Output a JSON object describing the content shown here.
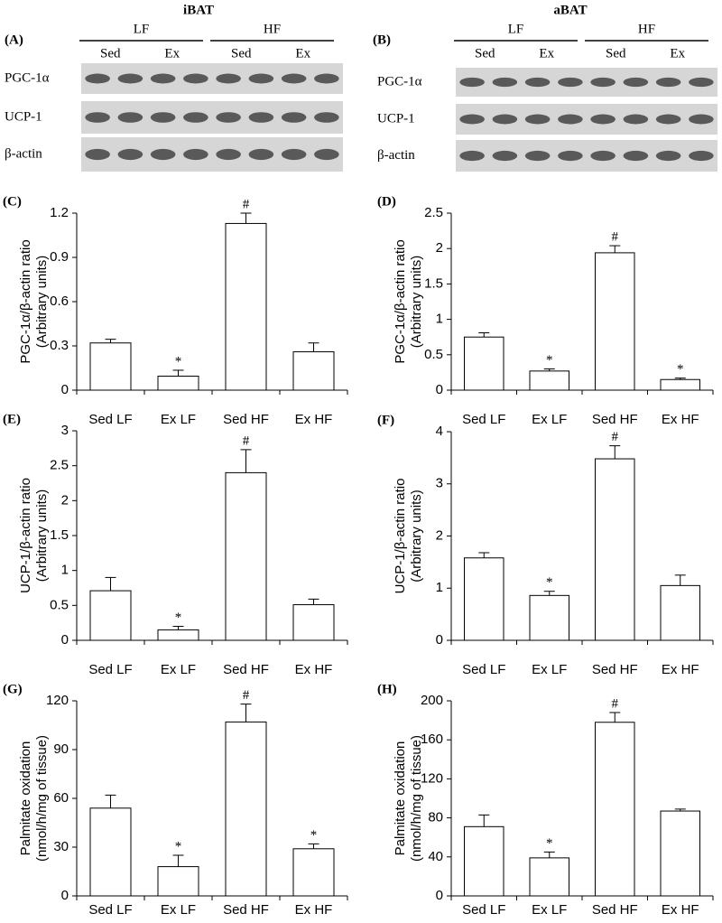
{
  "blots": [
    {
      "panel": "(A)",
      "title": "iBAT",
      "groups": [
        {
          "name": "LF",
          "subgroups": [
            "Sed",
            "Ex"
          ]
        },
        {
          "name": "HF",
          "subgroups": [
            "Sed",
            "Ex"
          ]
        }
      ],
      "rows": [
        "PGC-1α",
        "UCP-1",
        "β-actin"
      ]
    },
    {
      "panel": "(B)",
      "title": "aBAT",
      "groups": [
        {
          "name": "LF",
          "subgroups": [
            "Sed",
            "Ex"
          ]
        },
        {
          "name": "HF",
          "subgroups": [
            "Sed",
            "Ex"
          ]
        }
      ],
      "rows": [
        "PGC-1α",
        "UCP-1",
        "β-actin"
      ]
    }
  ],
  "chart_data": [
    {
      "type": "bar",
      "panel": "(C)",
      "ylabel": [
        "PGC-1α/β-actin ratio",
        "(Arbitrary units)"
      ],
      "categories": [
        "Sed LF",
        "Ex LF",
        "Sed HF",
        "Ex HF"
      ],
      "values": [
        0.32,
        0.095,
        1.13,
        0.26
      ],
      "errors": [
        0.025,
        0.04,
        0.07,
        0.06
      ],
      "markers": [
        null,
        "*",
        "#",
        null
      ],
      "ylim": [
        0,
        1.2
      ],
      "yticks": [
        0,
        0.3,
        0.6,
        0.9,
        1.2
      ]
    },
    {
      "type": "bar",
      "panel": "(D)",
      "ylabel": [
        "PGC-1α/β-actin ratio",
        "(Arbitrary units)"
      ],
      "categories": [
        "Sed LF",
        "Ex LF",
        "Sed HF",
        "Ex HF"
      ],
      "values": [
        0.75,
        0.27,
        1.94,
        0.15
      ],
      "errors": [
        0.06,
        0.03,
        0.1,
        0.02
      ],
      "markers": [
        null,
        "*",
        "#",
        "*"
      ],
      "ylim": [
        0,
        2.5
      ],
      "yticks": [
        0,
        0.5,
        1,
        1.5,
        2,
        2.5
      ]
    },
    {
      "type": "bar",
      "panel": "(E)",
      "ylabel": [
        "UCP-1/β-actin ratio",
        "(Arbitrary units)"
      ],
      "categories": [
        "Sed LF",
        "Ex LF",
        "Sed HF",
        "Ex HF"
      ],
      "values": [
        0.71,
        0.15,
        2.4,
        0.51
      ],
      "errors": [
        0.19,
        0.05,
        0.33,
        0.08
      ],
      "markers": [
        null,
        "*",
        "#",
        null
      ],
      "ylim": [
        0,
        3
      ],
      "yticks": [
        0,
        0.5,
        1,
        1.5,
        2,
        2.5,
        3
      ]
    },
    {
      "type": "bar",
      "panel": "(F)",
      "ylabel": [
        "UCP-1/β-actin ratio",
        "(Arbitrary units)"
      ],
      "categories": [
        "Sed LF",
        "Ex LF",
        "Sed HF",
        "Ex HF"
      ],
      "values": [
        1.58,
        0.86,
        3.48,
        1.05
      ],
      "errors": [
        0.1,
        0.08,
        0.25,
        0.2
      ],
      "markers": [
        null,
        "*",
        "#",
        null
      ],
      "ylim": [
        0,
        4
      ],
      "yticks": [
        0,
        1,
        2,
        3,
        4
      ]
    },
    {
      "type": "bar",
      "panel": "(G)",
      "ylabel": [
        "Palmitate oxidation",
        "(nmol/h/mg of tissue)"
      ],
      "categories": [
        "Sed LF",
        "Ex LF",
        "Sed HF",
        "Ex HF"
      ],
      "values": [
        54,
        18,
        107,
        29
      ],
      "errors": [
        8,
        7,
        11,
        3
      ],
      "markers": [
        null,
        "*",
        "#",
        "*"
      ],
      "ylim": [
        0,
        120
      ],
      "yticks": [
        0,
        30,
        60,
        90,
        120
      ]
    },
    {
      "type": "bar",
      "panel": "(H)",
      "ylabel": [
        "Palmitate oxidation",
        "(nmol/h/mg of tissue)"
      ],
      "categories": [
        "Sed LF",
        "Ex LF",
        "Sed HF",
        "Ex HF"
      ],
      "values": [
        71,
        39,
        178,
        87
      ],
      "errors": [
        12,
        6,
        10,
        2
      ],
      "markers": [
        null,
        "*",
        "#",
        null
      ],
      "ylim": [
        0,
        200
      ],
      "yticks": [
        0,
        40,
        80,
        120,
        160,
        200
      ]
    }
  ]
}
